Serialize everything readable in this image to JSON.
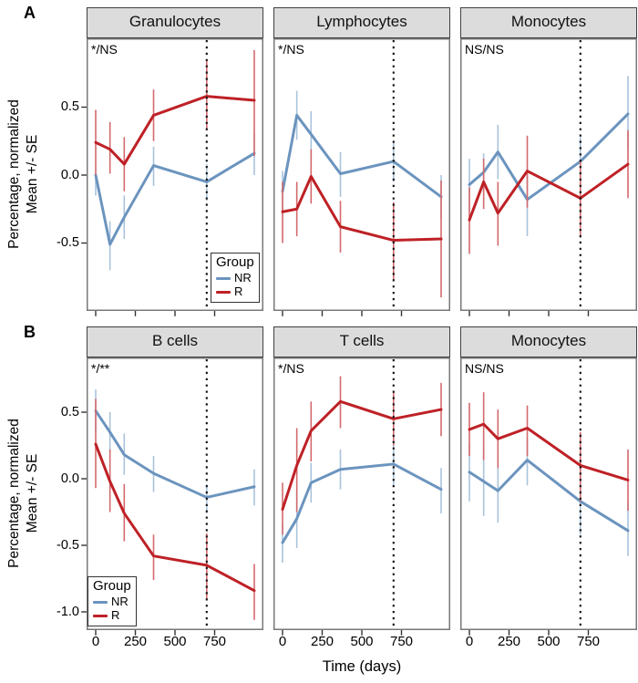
{
  "figure": {
    "panel_label_a": "A",
    "panel_label_b": "B",
    "y_axis_label_line1": "Percentage, normalized",
    "y_axis_label_line2": "Mean +/- SE",
    "x_axis_label": "Time (days)",
    "colors": {
      "nr_line": "#6B94BE",
      "nr_error": "#A9C3DC",
      "r_line": "#BE2126",
      "r_error": "#D4696D",
      "strip_bg": "#DCDCDC",
      "strip_border": "#404040",
      "panel_border": "#787878",
      "vline": "#111111"
    }
  },
  "chart_data": {
    "type": "line",
    "x_unit": "days",
    "x": [
      0,
      90,
      180,
      365,
      700,
      1000
    ],
    "xticks": [
      "0",
      "250",
      "500",
      "750"
    ],
    "xtick_values": [
      0,
      250,
      500,
      750
    ],
    "vline_x": 700,
    "grid": false,
    "legend": {
      "title": "Group",
      "entries": [
        {
          "label": "NR",
          "color": "#6B94BE"
        },
        {
          "label": "R",
          "color": "#BE2126"
        }
      ]
    },
    "rows": [
      {
        "row_label": "A",
        "yticks": [
          "0.5",
          "0.0",
          "-0.5"
        ],
        "ylim": [
          -0.87,
          1.0
        ]
      },
      {
        "row_label": "B",
        "yticks": [
          "0.5",
          "0.0",
          "-0.5",
          "-1.0"
        ],
        "ylim": [
          -1.14,
          0.91
        ]
      }
    ],
    "panels": [
      {
        "row": "A",
        "col": 0,
        "title": "Granulocytes",
        "annotation": "*/NS",
        "legend_position": "bottom-right",
        "series": [
          {
            "name": "NR",
            "color": "#6B94BE",
            "error_color": "#A9C3DC",
            "mean": [
              0.0,
              -0.51,
              -0.31,
              0.07,
              -0.05,
              0.16
            ],
            "lo": [
              -0.15,
              -0.7,
              -0.47,
              -0.08,
              -0.19,
              0.0
            ],
            "hi": [
              0.02,
              -0.34,
              -0.15,
              0.21,
              0.08,
              0.3
            ]
          },
          {
            "name": "R",
            "color": "#BE2126",
            "error_color": "#D4696D",
            "mean": [
              0.24,
              0.19,
              0.08,
              0.44,
              0.58,
              0.55
            ],
            "lo": [
              0.0,
              0.01,
              -0.12,
              0.25,
              0.33,
              0.14
            ],
            "hi": [
              0.48,
              0.39,
              0.28,
              0.63,
              0.85,
              0.92
            ]
          }
        ]
      },
      {
        "row": "A",
        "col": 1,
        "title": "Lymphocytes",
        "annotation": "*/NS",
        "legend_position": null,
        "series": [
          {
            "name": "NR",
            "color": "#6B94BE",
            "error_color": "#A9C3DC",
            "mean": [
              -0.12,
              0.44,
              0.3,
              0.01,
              0.1,
              -0.16
            ],
            "lo": [
              -0.3,
              0.26,
              0.13,
              -0.16,
              -0.05,
              -0.32
            ],
            "hi": [
              0.03,
              0.62,
              0.47,
              0.17,
              0.24,
              0.0
            ]
          },
          {
            "name": "R",
            "color": "#BE2126",
            "error_color": "#D4696D",
            "mean": [
              -0.27,
              -0.25,
              -0.01,
              -0.38,
              -0.48,
              -0.47
            ],
            "lo": [
              -0.5,
              -0.45,
              -0.21,
              -0.57,
              -0.77,
              -0.9
            ],
            "hi": [
              -0.05,
              -0.05,
              0.19,
              -0.19,
              -0.2,
              -0.04
            ]
          }
        ]
      },
      {
        "row": "A",
        "col": 2,
        "title": "Monocytes",
        "annotation": "NS/NS",
        "legend_position": null,
        "series": [
          {
            "name": "NR",
            "color": "#6B94BE",
            "error_color": "#A9C3DC",
            "mean": [
              -0.07,
              0.02,
              0.17,
              -0.18,
              0.1,
              0.45
            ],
            "lo": [
              -0.26,
              -0.12,
              -0.03,
              -0.45,
              -0.1,
              0.18
            ],
            "hi": [
              0.12,
              0.16,
              0.37,
              0.05,
              0.28,
              0.73
            ]
          },
          {
            "name": "R",
            "color": "#BE2126",
            "error_color": "#D4696D",
            "mean": [
              -0.33,
              -0.05,
              -0.28,
              0.03,
              -0.17,
              0.08
            ],
            "lo": [
              -0.58,
              -0.25,
              -0.52,
              -0.24,
              -0.46,
              -0.17
            ],
            "hi": [
              -0.09,
              0.12,
              -0.05,
              0.29,
              0.1,
              0.33
            ]
          }
        ]
      },
      {
        "row": "B",
        "col": 0,
        "title": "B cells",
        "annotation": "*/**",
        "legend_position": "bottom-left",
        "series": [
          {
            "name": "NR",
            "color": "#6B94BE",
            "error_color": "#A9C3DC",
            "mean": [
              0.51,
              0.35,
              0.18,
              0.04,
              -0.14,
              -0.06
            ],
            "lo": [
              0.35,
              0.2,
              0.03,
              -0.1,
              -0.26,
              -0.2
            ],
            "hi": [
              0.67,
              0.5,
              0.34,
              0.17,
              -0.04,
              0.07
            ]
          },
          {
            "name": "R",
            "color": "#BE2126",
            "error_color": "#D4696D",
            "mean": [
              0.26,
              -0.02,
              -0.26,
              -0.58,
              -0.65,
              -0.84
            ],
            "lo": [
              -0.07,
              -0.25,
              -0.47,
              -0.76,
              -0.91,
              -1.06
            ],
            "hi": [
              0.6,
              0.22,
              -0.04,
              -0.42,
              -0.41,
              -0.64
            ]
          }
        ]
      },
      {
        "row": "B",
        "col": 1,
        "title": "T cells",
        "annotation": "*/NS",
        "legend_position": null,
        "series": [
          {
            "name": "NR",
            "color": "#6B94BE",
            "error_color": "#A9C3DC",
            "mean": [
              -0.48,
              -0.3,
              -0.03,
              0.07,
              0.11,
              -0.08
            ],
            "lo": [
              -0.63,
              -0.52,
              -0.18,
              -0.08,
              -0.05,
              -0.26
            ],
            "hi": [
              -0.33,
              -0.09,
              0.12,
              0.22,
              0.26,
              0.08
            ]
          },
          {
            "name": "R",
            "color": "#BE2126",
            "error_color": "#D4696D",
            "mean": [
              -0.23,
              0.1,
              0.36,
              0.58,
              0.45,
              0.52
            ],
            "lo": [
              -0.42,
              -0.25,
              0.13,
              0.38,
              0.25,
              0.32
            ],
            "hi": [
              -0.03,
              0.38,
              0.58,
              0.77,
              0.66,
              0.72
            ]
          }
        ]
      },
      {
        "row": "B",
        "col": 2,
        "title": "Monocytes",
        "annotation": "NS/NS",
        "legend_position": null,
        "series": [
          {
            "name": "NR",
            "color": "#6B94BE",
            "error_color": "#A9C3DC",
            "mean": [
              0.05,
              -0.02,
              -0.09,
              0.14,
              -0.17,
              -0.39
            ],
            "lo": [
              -0.17,
              -0.28,
              -0.33,
              -0.05,
              -0.42,
              -0.58
            ],
            "hi": [
              0.26,
              0.24,
              0.15,
              0.31,
              0.07,
              -0.18
            ]
          },
          {
            "name": "R",
            "color": "#BE2126",
            "error_color": "#D4696D",
            "mean": [
              0.37,
              0.41,
              0.3,
              0.38,
              0.1,
              -0.01
            ],
            "lo": [
              0.17,
              0.14,
              0.08,
              0.17,
              -0.17,
              -0.24
            ],
            "hi": [
              0.57,
              0.65,
              0.52,
              0.55,
              0.35,
              0.22
            ]
          }
        ]
      }
    ]
  }
}
